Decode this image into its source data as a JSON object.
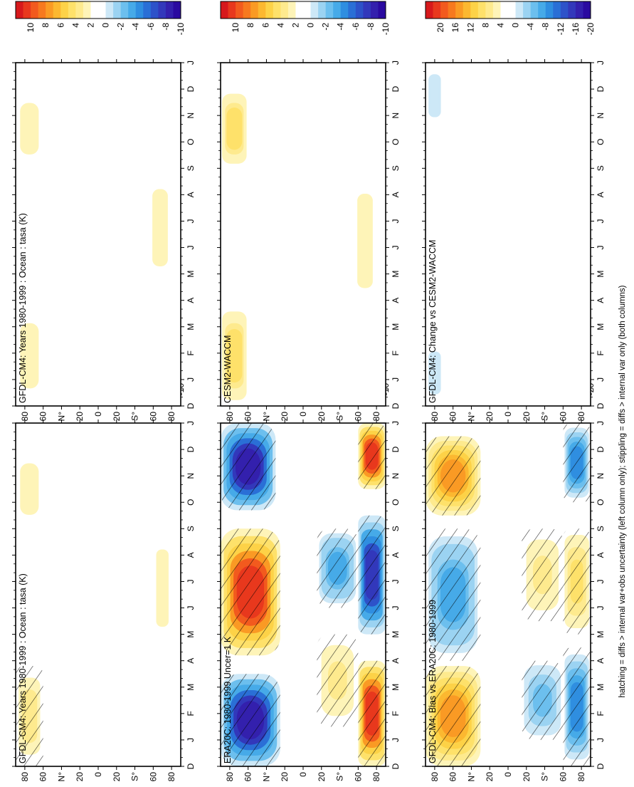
{
  "footnote": "hatching = diffs > internal var+obs uncertainty (left column only); stippling = diffs > internal var only (both columns)",
  "chart_data": [
    {
      "type": "heatmap",
      "panel": "top-left",
      "title": "GFDL-CM4: Years 1980-1999 : Ocean : tasa (K)",
      "x_ticks": [
        "D",
        "J",
        "F",
        "M",
        "A",
        "M",
        "J",
        "J",
        "A",
        "S",
        "O",
        "N",
        "D",
        "J"
      ],
      "y_ticks": [
        "80",
        "60",
        "N°",
        "20",
        "0",
        "20",
        "S°",
        "60",
        "80"
      ],
      "colorbar": [
        "10",
        "8",
        "6",
        "4",
        "2",
        "0",
        "-2",
        "-4",
        "-6",
        "-8",
        "-10"
      ],
      "hatched": true,
      "blobs": [
        {
          "c": 2.5,
          "m0": 0.0,
          "m1": 3.8,
          "l0": 60,
          "l1": 90
        },
        {
          "c": 1.5,
          "m0": 9.0,
          "m1": 12.0,
          "l0": 60,
          "l1": 90
        },
        {
          "c": 1.5,
          "m0": 4.5,
          "m1": 9.0,
          "l0": -80,
          "l1": -60
        }
      ]
    },
    {
      "type": "heatmap",
      "panel": "top-right",
      "title": "GFDL-CM4: Years 1980-1999 : Ocean : tasa (K)",
      "x_ticks": [
        "D",
        "J",
        "F",
        "M",
        "A",
        "M",
        "J",
        "J",
        "A",
        "S",
        "O",
        "N",
        "D",
        "J"
      ],
      "y_ticks": [
        "80",
        "60",
        "N°",
        "20",
        "0",
        "20",
        "S°",
        "60",
        "80"
      ],
      "colorbar": [
        "10",
        "8",
        "6",
        "4",
        "2",
        "0",
        "-2",
        "-4",
        "-6",
        "-8",
        "-10"
      ],
      "hatched": false,
      "blobs": [
        {
          "c": 1.5,
          "m0": 0.0,
          "m1": 3.8,
          "l0": 60,
          "l1": 90
        },
        {
          "c": 1.5,
          "m0": 9.0,
          "m1": 12.0,
          "l0": 60,
          "l1": 90
        },
        {
          "c": 1.5,
          "m0": 4.5,
          "m1": 9.0,
          "l0": -80,
          "l1": -55
        }
      ]
    },
    {
      "type": "heatmap",
      "panel": "middle-left",
      "title": "ERA20C: 1980-1999 Uncer=1 K",
      "x_ticks": [
        "D",
        "J",
        "F",
        "M",
        "A",
        "M",
        "J",
        "J",
        "A",
        "S",
        "O",
        "N",
        "D",
        "J"
      ],
      "y_ticks": [
        "80",
        "60",
        "N°",
        "20",
        "0",
        "20",
        "S°",
        "60",
        "80"
      ],
      "colorbar": [
        "10",
        "8",
        "6",
        "4",
        "2",
        "0",
        "-2",
        "-4",
        "-6",
        "-8",
        "-10"
      ],
      "hatched": true,
      "blobs": [
        {
          "c": -9.0,
          "m0": 0.0,
          "m1": 3.5,
          "l0": 25,
          "l1": 90
        },
        {
          "c": 9.0,
          "m0": 4.2,
          "m1": 9.0,
          "l0": 25,
          "l1": 90
        },
        {
          "c": -9.0,
          "m0": 9.7,
          "m1": 13.0,
          "l0": 30,
          "l1": 90
        },
        {
          "c": 2.0,
          "m0": 1.5,
          "m1": 5.0,
          "l0": -60,
          "l1": -15
        },
        {
          "c": -4.0,
          "m0": 6.0,
          "m1": 9.0,
          "l0": -60,
          "l1": -15
        },
        {
          "c": 9.0,
          "m0": 0.0,
          "m1": 4.0,
          "l0": -90,
          "l1": -60
        },
        {
          "c": -8.0,
          "m0": 5.0,
          "m1": 9.5,
          "l0": -90,
          "l1": -60
        },
        {
          "c": 9.0,
          "m0": 10.5,
          "m1": 13.0,
          "l0": -90,
          "l1": -60
        }
      ]
    },
    {
      "type": "heatmap",
      "panel": "middle-right",
      "title": "CESM2-WACCM",
      "x_ticks": [
        "D",
        "J",
        "F",
        "M",
        "A",
        "M",
        "J",
        "J",
        "A",
        "S",
        "O",
        "N",
        "D",
        "J"
      ],
      "y_ticks": [
        "80",
        "60",
        "N°",
        "20",
        "0",
        "20",
        "S°",
        "60",
        "80"
      ],
      "colorbar": [
        "10",
        "8",
        "6",
        "4",
        "2",
        "0",
        "-2",
        "-4",
        "-6",
        "-8",
        "-10"
      ],
      "hatched": false,
      "blobs": [
        {
          "c": 3.5,
          "m0": 0.0,
          "m1": 3.8,
          "l0": 60,
          "l1": 90
        },
        {
          "c": 3.5,
          "m0": 9.0,
          "m1": 12.0,
          "l0": 60,
          "l1": 90
        },
        {
          "c": 1.5,
          "m0": 3.5,
          "m1": 9.0,
          "l0": -80,
          "l1": -55
        }
      ]
    },
    {
      "type": "heatmap",
      "panel": "bottom-left",
      "title": "GFDL-CM4: Bias vs ERA20C: 1980-1999",
      "x_ticks": [
        "D",
        "J",
        "F",
        "M",
        "A",
        "M",
        "J",
        "J",
        "A",
        "S",
        "O",
        "N",
        "D",
        "J"
      ],
      "y_ticks": [
        "80",
        "60",
        "N°",
        "20",
        "0",
        "20",
        "S°",
        "60",
        "80"
      ],
      "colorbar": [
        "20",
        "16",
        "12",
        "8",
        "4",
        "0",
        "-4",
        "-8",
        "-12",
        "-16",
        "-20"
      ],
      "hatched": true,
      "blobs": [
        {
          "c": 12.0,
          "m0": 0.0,
          "m1": 3.8,
          "l0": 30,
          "l1": 90
        },
        {
          "c": -8.0,
          "m0": 4.0,
          "m1": 9.0,
          "l0": 30,
          "l1": 90
        },
        {
          "c": 12.0,
          "m0": 9.5,
          "m1": 12.5,
          "l0": 30,
          "l1": 90
        },
        {
          "c": -6.0,
          "m0": 1.0,
          "m1": 4.0,
          "l0": -60,
          "l1": -15
        },
        {
          "c": 4.0,
          "m0": 5.5,
          "m1": 9.0,
          "l0": -60,
          "l1": -15
        },
        {
          "c": -10.0,
          "m0": 0.0,
          "m1": 4.5,
          "l0": -90,
          "l1": -60
        },
        {
          "c": 6.0,
          "m0": 5.0,
          "m1": 9.0,
          "l0": -90,
          "l1": -60
        },
        {
          "c": -10.0,
          "m0": 10.0,
          "m1": 13.0,
          "l0": -90,
          "l1": -60
        }
      ]
    },
    {
      "type": "heatmap",
      "panel": "bottom-right",
      "title": "GFDL-CM4: Change vs CESM2-WACCM",
      "x_ticks": [
        "D",
        "J",
        "F",
        "M",
        "A",
        "M",
        "J",
        "J",
        "A",
        "S",
        "O",
        "N",
        "D",
        "J"
      ],
      "y_ticks": [
        "80",
        "60",
        "N°",
        "20",
        "0",
        "20",
        "S°",
        "60",
        "80"
      ],
      "colorbar": [
        "20",
        "16",
        "12",
        "8",
        "4",
        "0",
        "-4",
        "-8",
        "-12",
        "-16",
        "-20"
      ],
      "hatched": false,
      "blobs": [
        {
          "c": -3.0,
          "m0": 0.0,
          "m1": 2.5,
          "l0": 70,
          "l1": 90
        },
        {
          "c": -3.0,
          "m0": 10.5,
          "m1": 13.0,
          "l0": 70,
          "l1": 90
        }
      ]
    }
  ]
}
